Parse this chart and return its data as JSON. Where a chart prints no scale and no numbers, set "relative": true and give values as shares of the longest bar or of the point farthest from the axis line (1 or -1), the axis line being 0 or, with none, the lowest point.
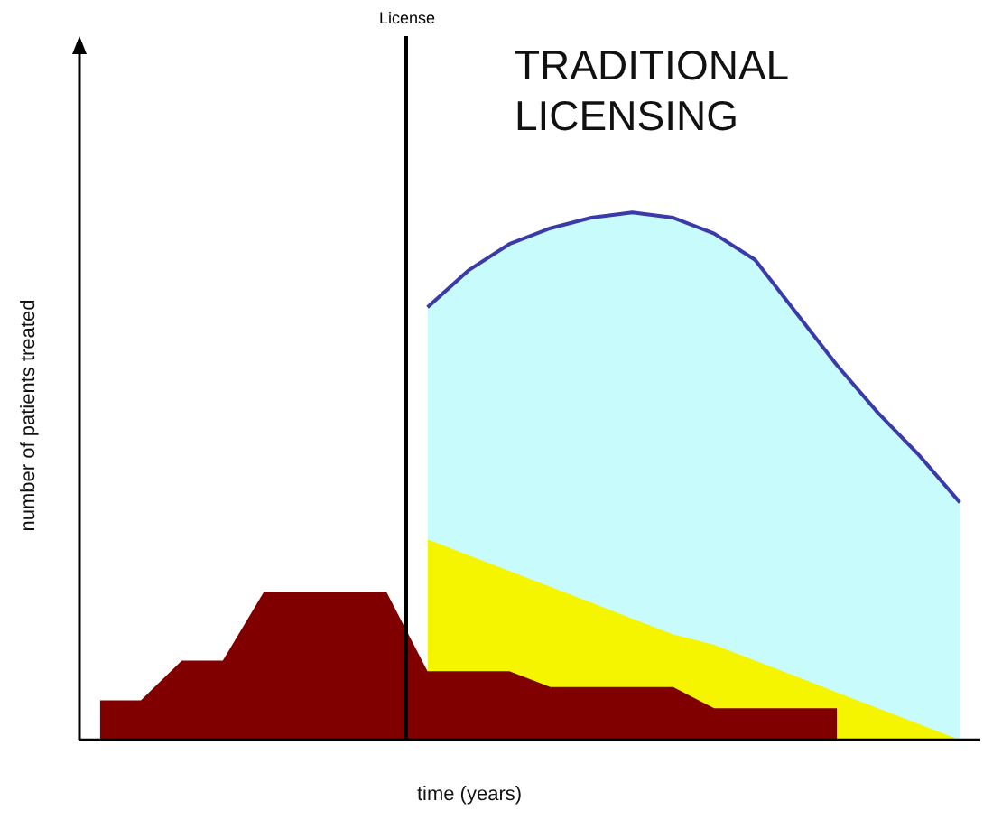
{
  "chart_data": {
    "type": "area",
    "title": "TRADITIONAL LICENSING",
    "xlabel": "time (years)",
    "ylabel": "number of patients treated",
    "relative": true,
    "legend": false,
    "grid": false,
    "categories": [
      null,
      null,
      null,
      null,
      null,
      null,
      null,
      null,
      null,
      null,
      null,
      null,
      null,
      null,
      null,
      null,
      null,
      null,
      null,
      null,
      null,
      null
    ],
    "annotations": [
      "License"
    ],
    "series": [
      {
        "color": "#c8fcfc",
        "values": [
          null,
          null,
          null,
          null,
          null,
          null,
          null,
          null,
          0.82,
          0.89,
          0.94,
          0.97,
          0.99,
          1.0,
          0.99,
          0.96,
          0.91,
          0.81,
          0.71,
          0.62,
          0.54,
          0.45
        ]
      },
      {
        "color": "#f5f500",
        "values": [
          null,
          null,
          null,
          null,
          null,
          null,
          null,
          null,
          0.38,
          0.35,
          0.32,
          0.29,
          0.26,
          0.23,
          0.2,
          0.18,
          0.15,
          0.12,
          0.09,
          0.06,
          0.03,
          0
        ]
      },
      {
        "color": "#800000",
        "values": [
          0.075,
          0.075,
          0.15,
          0.15,
          0.28,
          0.28,
          0.28,
          0.28,
          0.13,
          0.13,
          0.13,
          0.1,
          0.1,
          0.1,
          0.1,
          0.06,
          0.06,
          0.06,
          0.06,
          null,
          null,
          null
        ]
      }
    ]
  }
}
